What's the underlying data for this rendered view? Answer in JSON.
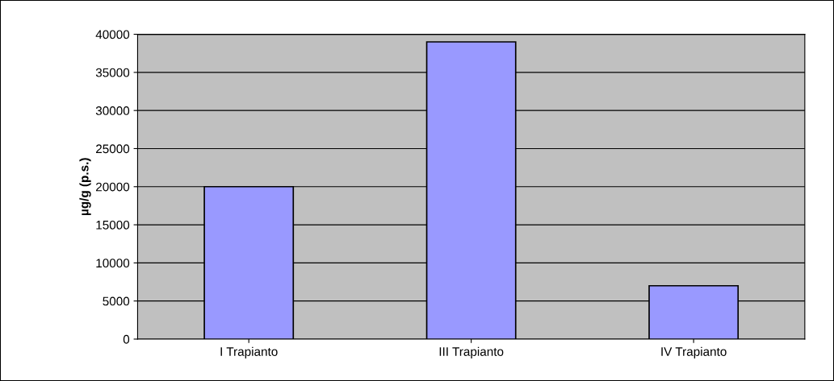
{
  "chart_data": {
    "type": "bar",
    "ylabel": "µg/g (p.s.)",
    "categories": [
      "I Trapianto",
      "III Trapianto",
      "IV Trapianto"
    ],
    "values": [
      20000,
      39000,
      7000
    ],
    "color": "#9999ff",
    "ylim": [
      0,
      40000
    ],
    "yticks": [
      0,
      5000,
      10000,
      15000,
      20000,
      25000,
      30000,
      35000,
      40000
    ],
    "grid": "y"
  }
}
